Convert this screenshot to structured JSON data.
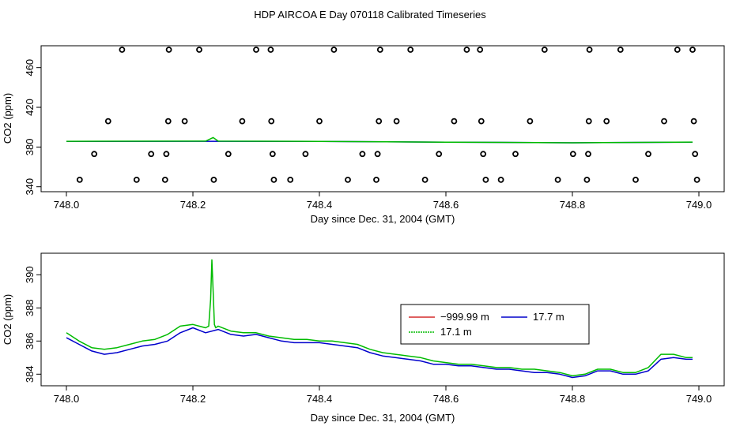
{
  "figure_title": "HDP AIRCOA E  Day 070118  Calibrated Timeseries",
  "chart_data": [
    {
      "type": "scatter",
      "xlabel": "Day since Dec. 31, 2004 (GMT)",
      "ylabel": "CO2 (ppm)",
      "xlim": [
        747.96,
        749.04
      ],
      "ylim": [
        335,
        482
      ],
      "x_ticks": [
        748.0,
        748.2,
        748.4,
        748.6,
        748.8,
        749.0
      ],
      "x_tick_labels": [
        "748.0",
        "748.2",
        "748.4",
        "748.6",
        "748.8",
        "749.0"
      ],
      "y_ticks": [
        340,
        380,
        420,
        460
      ],
      "y_tick_labels": [
        "340",
        "380",
        "420",
        "460"
      ],
      "grid": false,
      "colors": {
        "points": "#000000",
        "line": "#0000cc",
        "line2": "#00bb00"
      },
      "points": [
        [
          748.088,
          478
        ],
        [
          748.162,
          478
        ],
        [
          748.21,
          478
        ],
        [
          748.3,
          478
        ],
        [
          748.323,
          478
        ],
        [
          748.423,
          478
        ],
        [
          748.496,
          478
        ],
        [
          748.544,
          478
        ],
        [
          748.633,
          478
        ],
        [
          748.654,
          478
        ],
        [
          748.756,
          478
        ],
        [
          748.827,
          478
        ],
        [
          748.876,
          478
        ],
        [
          748.966,
          478
        ],
        [
          748.99,
          478
        ],
        [
          748.066,
          406
        ],
        [
          748.161,
          406
        ],
        [
          748.187,
          406
        ],
        [
          748.278,
          406
        ],
        [
          748.324,
          406
        ],
        [
          748.4,
          406
        ],
        [
          748.494,
          406
        ],
        [
          748.522,
          406
        ],
        [
          748.613,
          406
        ],
        [
          748.656,
          406
        ],
        [
          748.733,
          406
        ],
        [
          748.826,
          406
        ],
        [
          748.854,
          406
        ],
        [
          748.945,
          406
        ],
        [
          748.992,
          406
        ],
        [
          748.044,
          373
        ],
        [
          748.134,
          373
        ],
        [
          748.158,
          373
        ],
        [
          748.256,
          373
        ],
        [
          748.326,
          373
        ],
        [
          748.378,
          373
        ],
        [
          748.468,
          373
        ],
        [
          748.492,
          373
        ],
        [
          748.589,
          373
        ],
        [
          748.659,
          373
        ],
        [
          748.71,
          373
        ],
        [
          748.801,
          373
        ],
        [
          748.825,
          373
        ],
        [
          748.92,
          373
        ],
        [
          748.994,
          373
        ],
        [
          748.021,
          347
        ],
        [
          748.111,
          347
        ],
        [
          748.156,
          347
        ],
        [
          748.233,
          347
        ],
        [
          748.328,
          347
        ],
        [
          748.354,
          347
        ],
        [
          748.445,
          347
        ],
        [
          748.49,
          347
        ],
        [
          748.567,
          347
        ],
        [
          748.663,
          347
        ],
        [
          748.687,
          347
        ],
        [
          748.777,
          347
        ],
        [
          748.823,
          347
        ],
        [
          748.9,
          347
        ],
        [
          748.997,
          347
        ]
      ],
      "series_lines": [
        {
          "color": "#0000cc",
          "x": [
            748.0,
            748.2,
            748.4,
            748.6,
            748.8,
            748.99
          ],
          "y": [
            385.6,
            385.8,
            385.6,
            384.9,
            384.3,
            384.9
          ]
        },
        {
          "color": "#00bb00",
          "x": [
            748.0,
            748.22,
            748.232,
            748.24,
            748.4,
            748.6,
            748.8,
            748.99
          ],
          "y": [
            385.8,
            385.9,
            389.5,
            385.9,
            385.7,
            384.9,
            384.3,
            385.0
          ]
        }
      ]
    },
    {
      "type": "line",
      "xlabel": "Day since Dec. 31, 2004 (GMT)",
      "ylabel": "CO2 (ppm)",
      "xlim": [
        747.96,
        749.04
      ],
      "ylim": [
        383.3,
        391.3
      ],
      "x_ticks": [
        748.0,
        748.2,
        748.4,
        748.6,
        748.8,
        749.0
      ],
      "x_tick_labels": [
        "748.0",
        "748.2",
        "748.4",
        "748.6",
        "748.8",
        "749.0"
      ],
      "y_ticks": [
        384,
        386,
        388,
        390
      ],
      "y_tick_labels": [
        "384",
        "386",
        "388",
        "390"
      ],
      "grid": false,
      "legend": {
        "placement": "center-right",
        "entries": [
          {
            "label": "−999.99 m",
            "color": "#cc0000"
          },
          {
            "label": "17.7 m",
            "color": "#0000cc"
          },
          {
            "label": "17.1 m",
            "color": "#00bb00"
          }
        ]
      },
      "series": [
        {
          "name": "17.7 m",
          "color": "#0000cc",
          "x": [
            748.0,
            748.02,
            748.04,
            748.06,
            748.08,
            748.1,
            748.12,
            748.14,
            748.16,
            748.18,
            748.2,
            748.22,
            748.24,
            748.26,
            748.28,
            748.3,
            748.32,
            748.34,
            748.36,
            748.38,
            748.4,
            748.42,
            748.44,
            748.46,
            748.48,
            748.5,
            748.52,
            748.54,
            748.56,
            748.58,
            748.6,
            748.62,
            748.64,
            748.66,
            748.68,
            748.7,
            748.72,
            748.74,
            748.76,
            748.78,
            748.8,
            748.82,
            748.84,
            748.86,
            748.88,
            748.9,
            748.92,
            748.94,
            748.96,
            748.98,
            748.99
          ],
          "y": [
            386.2,
            385.8,
            385.4,
            385.2,
            385.3,
            385.5,
            385.7,
            385.8,
            386.0,
            386.5,
            386.8,
            386.5,
            386.7,
            386.4,
            386.3,
            386.4,
            386.2,
            386.0,
            385.9,
            385.9,
            385.9,
            385.8,
            385.7,
            385.6,
            385.3,
            385.1,
            385.0,
            384.9,
            384.8,
            384.6,
            384.6,
            384.5,
            384.5,
            384.4,
            384.3,
            384.3,
            384.2,
            384.1,
            384.1,
            384.0,
            383.8,
            383.9,
            384.2,
            384.2,
            384.0,
            384.0,
            384.2,
            384.9,
            385.0,
            384.9,
            384.9
          ]
        },
        {
          "name": "17.1 m",
          "color": "#00bb00",
          "x": [
            748.0,
            748.02,
            748.04,
            748.06,
            748.08,
            748.1,
            748.12,
            748.14,
            748.16,
            748.18,
            748.2,
            748.22,
            748.225,
            748.228,
            748.23,
            748.232,
            748.234,
            748.236,
            748.24,
            748.26,
            748.28,
            748.3,
            748.32,
            748.34,
            748.36,
            748.38,
            748.4,
            748.42,
            748.44,
            748.46,
            748.48,
            748.5,
            748.52,
            748.54,
            748.56,
            748.58,
            748.6,
            748.62,
            748.64,
            748.66,
            748.68,
            748.7,
            748.72,
            748.74,
            748.76,
            748.78,
            748.8,
            748.82,
            748.84,
            748.86,
            748.88,
            748.9,
            748.92,
            748.94,
            748.96,
            748.98,
            748.99
          ],
          "y": [
            386.5,
            386.0,
            385.6,
            385.5,
            385.6,
            385.8,
            386.0,
            386.1,
            386.4,
            386.9,
            387.0,
            386.8,
            386.9,
            388.5,
            390.9,
            389.0,
            387.0,
            386.8,
            386.9,
            386.6,
            386.5,
            386.5,
            386.3,
            386.2,
            386.1,
            386.1,
            386.0,
            386.0,
            385.9,
            385.8,
            385.5,
            385.3,
            385.2,
            385.1,
            385.0,
            384.8,
            384.7,
            384.6,
            384.6,
            384.5,
            384.4,
            384.4,
            384.3,
            384.3,
            384.2,
            384.1,
            383.9,
            384.0,
            384.3,
            384.3,
            384.1,
            384.1,
            384.4,
            385.2,
            385.2,
            385.0,
            385.0
          ]
        },
        {
          "name": "−999.99 m",
          "color": "#cc0000",
          "x": [],
          "y": []
        }
      ]
    }
  ]
}
